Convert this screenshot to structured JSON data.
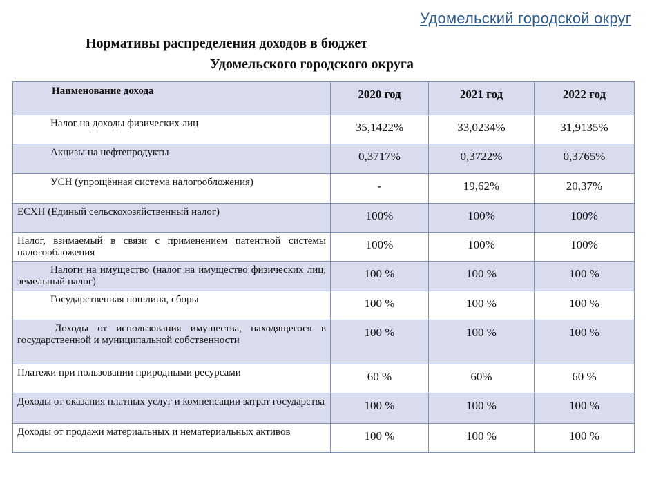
{
  "header": {
    "district": "Удомельский городской округ",
    "title_line1": "Нормативы распределения доходов в бюджет",
    "title_line2": "Удомельского городского округа"
  },
  "table": {
    "columns": [
      "Наименование дохода",
      "2020 год",
      "2021 год",
      "2022 год"
    ],
    "rows": [
      {
        "name": "Налог на доходы физических лиц",
        "v2020": "35,1422%",
        "v2021": "33,0234%",
        "v2022": "31,9135%"
      },
      {
        "name": "Акцизы на нефтепродукты",
        "v2020": "0,3717%",
        "v2021": "0,3722%",
        "v2022": "0,3765%"
      },
      {
        "name": "УСН (упрощённая система налогообложения)",
        "v2020": "-",
        "v2021": "19,62%",
        "v2022": "20,37%"
      },
      {
        "name": "ЕСХН (Единый сельскохозяйственный налог)",
        "v2020": "100%",
        "v2021": "100%",
        "v2022": "100%"
      },
      {
        "name": "Налог, взимаемый в связи с применением патентной системы налогообложения",
        "v2020": "100%",
        "v2021": "100%",
        "v2022": "100%"
      },
      {
        "name": "Налоги на имущество (налог на имущество физических лиц, земельный налог)",
        "v2020": "100 %",
        "v2021": "100 %",
        "v2022": "100 %"
      },
      {
        "name": "Государственная пошлина, сборы",
        "v2020": "100 %",
        "v2021": "100 %",
        "v2022": "100 %"
      },
      {
        "name": "Доходы от использования имущества, находящегося в государственной и муниципальной собственности",
        "v2020": "100 %",
        "v2021": "100 %",
        "v2022": "100 %"
      },
      {
        "name": "Платежи при пользовании природными ресурсами",
        "v2020": "60 %",
        "v2021": "60%",
        "v2022": "60 %"
      },
      {
        "name": "Доходы от оказания платных услуг и компенсации затрат государства",
        "v2020": "100 %",
        "v2021": "100 %",
        "v2022": "100 %"
      },
      {
        "name": "Доходы от продажи материальных и нематериальных активов",
        "v2020": "100 %",
        "v2021": "100 %",
        "v2022": "100 %"
      }
    ]
  }
}
